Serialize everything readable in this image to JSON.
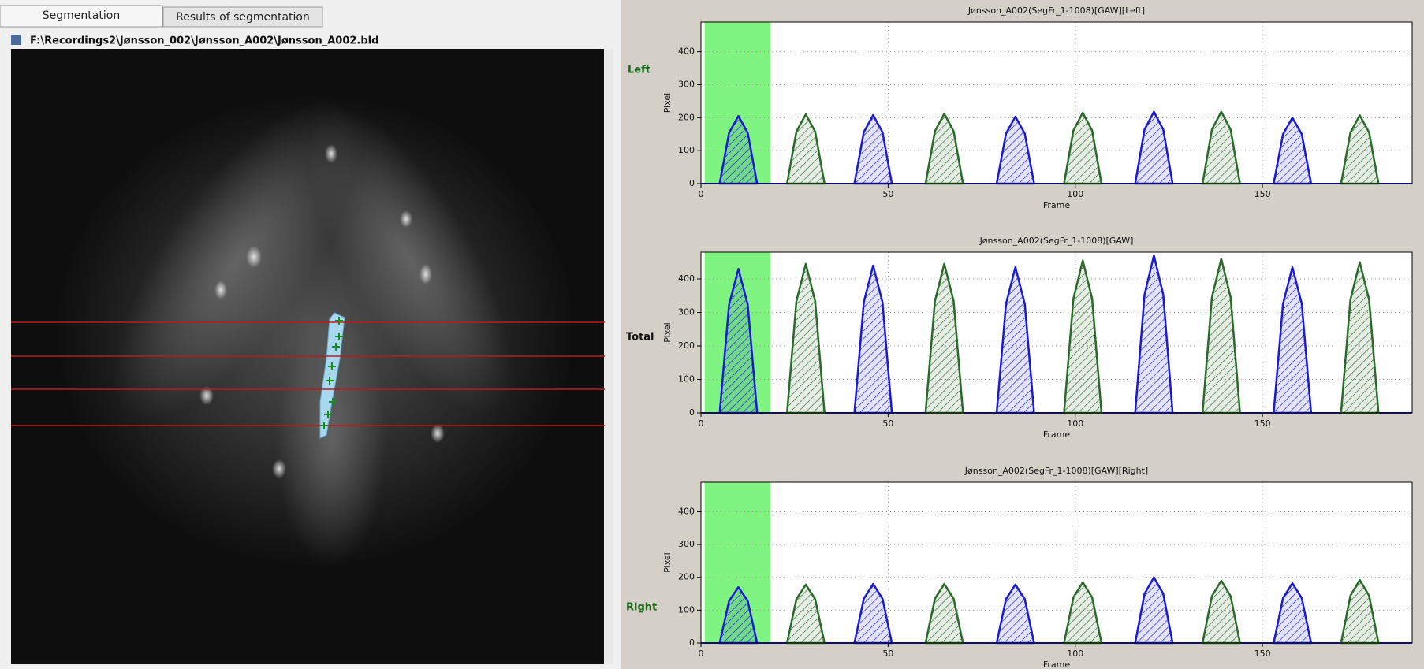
{
  "tabs": [
    "Segmentation",
    "Results of segmentation"
  ],
  "file_path": "F:\\Recordings2\\Jønsson_002\\Jønsson_A002\\Jønsson_A002.bld",
  "side_labels": [
    "Left",
    "Total",
    "Right"
  ],
  "chart_data": [
    {
      "type": "area",
      "title": "Jønsson_A002(SegFr_1-1008)[GAW][Left]",
      "xlabel": "Frame",
      "ylabel": "Pixel",
      "xlim": [
        0,
        190
      ],
      "ylim": [
        0,
        490
      ],
      "xticks": [
        0,
        50,
        100,
        150
      ],
      "yticks": [
        0,
        100,
        200,
        300,
        400
      ],
      "grid": true,
      "highlight_x": [
        1,
        18.5
      ],
      "series": [
        {
          "color": "#1a1ad6",
          "x": [
            5,
            7.5,
            10,
            12.5,
            15
          ],
          "values": [
            0,
            154,
            205,
            154,
            0
          ]
        },
        {
          "color": "#2a6a2a",
          "x": [
            23,
            25.5,
            28,
            30.5,
            33
          ],
          "values": [
            0,
            158,
            210,
            158,
            0
          ]
        },
        {
          "color": "#1a1ad6",
          "x": [
            41,
            43.5,
            46,
            48.5,
            51
          ],
          "values": [
            0,
            156,
            208,
            156,
            0
          ]
        },
        {
          "color": "#2a6a2a",
          "x": [
            60,
            62.5,
            65,
            67.5,
            70
          ],
          "values": [
            0,
            159,
            212,
            159,
            0
          ]
        },
        {
          "color": "#1a1ad6",
          "x": [
            79,
            81.5,
            84,
            86.5,
            89
          ],
          "values": [
            0,
            152,
            203,
            152,
            0
          ]
        },
        {
          "color": "#2a6a2a",
          "x": [
            97,
            99.5,
            102,
            104.5,
            107
          ],
          "values": [
            0,
            161,
            215,
            161,
            0
          ]
        },
        {
          "color": "#1a1ad6",
          "x": [
            116,
            118.5,
            121,
            123.5,
            126
          ],
          "values": [
            0,
            164,
            218,
            164,
            0
          ]
        },
        {
          "color": "#2a6a2a",
          "x": [
            134,
            136.5,
            139,
            141.5,
            144
          ],
          "values": [
            0,
            164,
            218,
            164,
            0
          ]
        },
        {
          "color": "#1a1ad6",
          "x": [
            153,
            155.5,
            158,
            160.5,
            163
          ],
          "values": [
            0,
            150,
            200,
            150,
            0
          ]
        },
        {
          "color": "#2a6a2a",
          "x": [
            171,
            173.5,
            176,
            178.5,
            181
          ],
          "values": [
            0,
            155,
            207,
            155,
            0
          ]
        }
      ]
    },
    {
      "type": "area",
      "title": "Jønsson_A002(SegFr_1-1008)[GAW]",
      "xlabel": "Frame",
      "ylabel": "Pixel",
      "xlim": [
        0,
        190
      ],
      "ylim": [
        0,
        480
      ],
      "xticks": [
        0,
        50,
        100,
        150
      ],
      "yticks": [
        0,
        100,
        200,
        300,
        400
      ],
      "grid": true,
      "highlight_x": [
        1,
        18.5
      ],
      "series": [
        {
          "color": "#1a1ad6",
          "x": [
            5,
            7.5,
            10,
            12.5,
            15
          ],
          "values": [
            0,
            323,
            430,
            323,
            0
          ]
        },
        {
          "color": "#2a6a2a",
          "x": [
            23,
            25.5,
            28,
            30.5,
            33
          ],
          "values": [
            0,
            334,
            445,
            334,
            0
          ]
        },
        {
          "color": "#1a1ad6",
          "x": [
            41,
            43.5,
            46,
            48.5,
            51
          ],
          "values": [
            0,
            330,
            440,
            330,
            0
          ]
        },
        {
          "color": "#2a6a2a",
          "x": [
            60,
            62.5,
            65,
            67.5,
            70
          ],
          "values": [
            0,
            334,
            445,
            334,
            0
          ]
        },
        {
          "color": "#1a1ad6",
          "x": [
            79,
            81.5,
            84,
            86.5,
            89
          ],
          "values": [
            0,
            326,
            435,
            326,
            0
          ]
        },
        {
          "color": "#2a6a2a",
          "x": [
            97,
            99.5,
            102,
            104.5,
            107
          ],
          "values": [
            0,
            341,
            455,
            341,
            0
          ]
        },
        {
          "color": "#1a1ad6",
          "x": [
            116,
            118.5,
            121,
            123.5,
            126
          ],
          "values": [
            0,
            353,
            470,
            353,
            0
          ]
        },
        {
          "color": "#2a6a2a",
          "x": [
            134,
            136.5,
            139,
            141.5,
            144
          ],
          "values": [
            0,
            345,
            460,
            345,
            0
          ]
        },
        {
          "color": "#1a1ad6",
          "x": [
            153,
            155.5,
            158,
            160.5,
            163
          ],
          "values": [
            0,
            326,
            435,
            326,
            0
          ]
        },
        {
          "color": "#2a6a2a",
          "x": [
            171,
            173.5,
            176,
            178.5,
            181
          ],
          "values": [
            0,
            338,
            450,
            338,
            0
          ]
        }
      ]
    },
    {
      "type": "area",
      "title": "Jønsson_A002(SegFr_1-1008)[GAW][Right]",
      "xlabel": "Frame",
      "ylabel": "Pixel",
      "xlim": [
        0,
        190
      ],
      "ylim": [
        0,
        490
      ],
      "xticks": [
        0,
        50,
        100,
        150
      ],
      "yticks": [
        0,
        100,
        200,
        300,
        400
      ],
      "grid": true,
      "highlight_x": [
        1,
        18.5
      ],
      "series": [
        {
          "color": "#1a1ad6",
          "x": [
            5,
            7.5,
            10,
            12.5,
            15
          ],
          "values": [
            0,
            128,
            170,
            128,
            0
          ]
        },
        {
          "color": "#2a6a2a",
          "x": [
            23,
            25.5,
            28,
            30.5,
            33
          ],
          "values": [
            0,
            134,
            178,
            134,
            0
          ]
        },
        {
          "color": "#1a1ad6",
          "x": [
            41,
            43.5,
            46,
            48.5,
            51
          ],
          "values": [
            0,
            135,
            180,
            135,
            0
          ]
        },
        {
          "color": "#2a6a2a",
          "x": [
            60,
            62.5,
            65,
            67.5,
            70
          ],
          "values": [
            0,
            135,
            180,
            135,
            0
          ]
        },
        {
          "color": "#1a1ad6",
          "x": [
            79,
            81.5,
            84,
            86.5,
            89
          ],
          "values": [
            0,
            134,
            178,
            134,
            0
          ]
        },
        {
          "color": "#2a6a2a",
          "x": [
            97,
            99.5,
            102,
            104.5,
            107
          ],
          "values": [
            0,
            139,
            185,
            139,
            0
          ]
        },
        {
          "color": "#1a1ad6",
          "x": [
            116,
            118.5,
            121,
            123.5,
            126
          ],
          "values": [
            0,
            150,
            200,
            150,
            0
          ]
        },
        {
          "color": "#2a6a2a",
          "x": [
            134,
            136.5,
            139,
            141.5,
            144
          ],
          "values": [
            0,
            143,
            190,
            143,
            0
          ]
        },
        {
          "color": "#1a1ad6",
          "x": [
            153,
            155.5,
            158,
            160.5,
            163
          ],
          "values": [
            0,
            137,
            182,
            137,
            0
          ]
        },
        {
          "color": "#2a6a2a",
          "x": [
            171,
            173.5,
            176,
            178.5,
            181
          ],
          "values": [
            0,
            144,
            192,
            144,
            0
          ]
        }
      ]
    }
  ]
}
